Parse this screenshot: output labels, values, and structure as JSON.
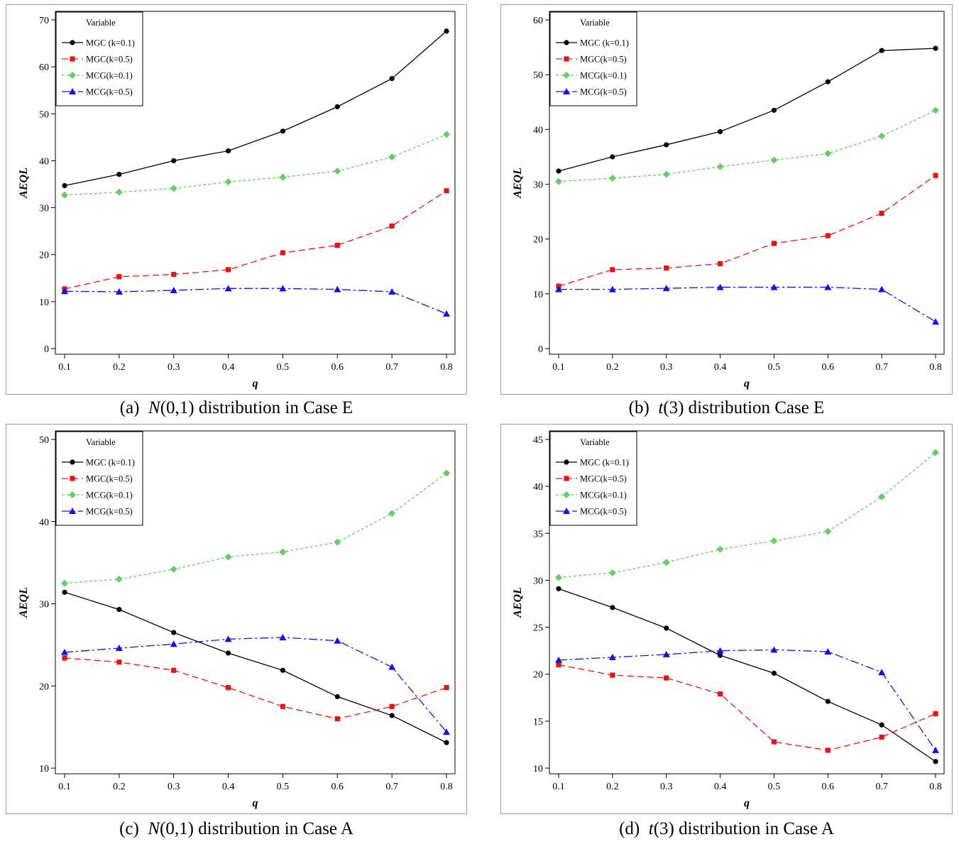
{
  "legend_title": "Variable",
  "series_styles": [
    {
      "color": "#000000",
      "dash": "",
      "marker": "circle"
    },
    {
      "color": "#ee1111",
      "dash": "9,5",
      "marker": "square"
    },
    {
      "color": "#66cc66",
      "dash": "4,3",
      "marker": "diamond"
    },
    {
      "color": "#1111ee",
      "dash": "12,4,3,4",
      "marker": "triangle"
    }
  ],
  "chart_data": [
    {
      "type": "line",
      "caption": {
        "label": "(a)",
        "dist": "N",
        "params": "(0,1)",
        "rest": "distribution in Case E"
      },
      "xlabel": "q",
      "ylabel": "AEQL",
      "x": [
        0.1,
        0.2,
        0.3,
        0.4,
        0.5,
        0.6,
        0.7,
        0.8
      ],
      "ylim": [
        0,
        70
      ],
      "yticks": [
        0,
        10,
        20,
        30,
        40,
        50,
        60,
        70
      ],
      "series": [
        {
          "name": "MGC (k=0.1)",
          "values": [
            34.7,
            37.1,
            40.0,
            42.1,
            46.3,
            51.5,
            57.5,
            67.6
          ]
        },
        {
          "name": "MGC(k=0.5)",
          "values": [
            12.7,
            15.3,
            15.8,
            16.8,
            20.4,
            22.0,
            26.1,
            33.6
          ]
        },
        {
          "name": "MCG(k=0.1)",
          "values": [
            32.7,
            33.3,
            34.1,
            35.5,
            36.5,
            37.8,
            40.8,
            45.6
          ]
        },
        {
          "name": "MCG(k=0.5)",
          "values": [
            12.2,
            12.1,
            12.4,
            12.8,
            12.8,
            12.6,
            12.1,
            7.4
          ]
        }
      ]
    },
    {
      "type": "line",
      "caption": {
        "label": "(b)",
        "dist": "t",
        "params": "(3)",
        "rest": "distribution Case E"
      },
      "xlabel": "q",
      "ylabel": "AEQL",
      "x": [
        0.1,
        0.2,
        0.3,
        0.4,
        0.5,
        0.6,
        0.7,
        0.8
      ],
      "ylim": [
        0,
        60
      ],
      "yticks": [
        0,
        10,
        20,
        30,
        40,
        50,
        60
      ],
      "series": [
        {
          "name": "MGC (k=0.1)",
          "values": [
            32.4,
            35.0,
            37.2,
            39.6,
            43.5,
            48.7,
            54.4,
            54.8
          ]
        },
        {
          "name": "MGC(k=0.5)",
          "values": [
            11.4,
            14.4,
            14.7,
            15.5,
            19.2,
            20.6,
            24.7,
            31.6
          ]
        },
        {
          "name": "MCG(k=0.1)",
          "values": [
            30.5,
            31.1,
            31.8,
            33.2,
            34.4,
            35.6,
            38.8,
            43.5
          ]
        },
        {
          "name": "MCG(k=0.5)",
          "values": [
            10.8,
            10.8,
            11.0,
            11.2,
            11.2,
            11.2,
            10.8,
            4.9
          ]
        }
      ]
    },
    {
      "type": "line",
      "caption": {
        "label": "(c)",
        "dist": "N",
        "params": "(0,1)",
        "rest": "distribution in Case A"
      },
      "xlabel": "q",
      "ylabel": "AEQL",
      "x": [
        0.1,
        0.2,
        0.3,
        0.4,
        0.5,
        0.6,
        0.7,
        0.8
      ],
      "ylim": [
        10,
        50
      ],
      "yticks": [
        10,
        20,
        30,
        40,
        50
      ],
      "series": [
        {
          "name": "MGC (k=0.1)",
          "values": [
            31.4,
            29.3,
            26.5,
            24.0,
            21.9,
            18.7,
            16.4,
            13.1
          ]
        },
        {
          "name": "MGC(k=0.5)",
          "values": [
            23.4,
            22.9,
            21.9,
            19.8,
            17.5,
            16.0,
            17.5,
            19.8
          ]
        },
        {
          "name": "MCG(k=0.1)",
          "values": [
            32.5,
            33.0,
            34.2,
            35.7,
            36.3,
            37.5,
            41.0,
            45.9
          ]
        },
        {
          "name": "MCG(k=0.5)",
          "values": [
            24.1,
            24.6,
            25.1,
            25.7,
            25.9,
            25.5,
            22.3,
            14.4
          ]
        }
      ]
    },
    {
      "type": "line",
      "caption": {
        "label": "(d)",
        "dist": "t",
        "params": "(3)",
        "rest": "distribution in Case A"
      },
      "xlabel": "q",
      "ylabel": "AEQL",
      "x": [
        0.1,
        0.2,
        0.3,
        0.4,
        0.5,
        0.6,
        0.7,
        0.8
      ],
      "ylim": [
        10,
        45
      ],
      "yticks": [
        10,
        15,
        20,
        25,
        30,
        35,
        40,
        45
      ],
      "series": [
        {
          "name": "MGC (k=0.1)",
          "values": [
            29.1,
            27.1,
            24.9,
            22.0,
            20.1,
            17.1,
            14.6,
            10.7
          ]
        },
        {
          "name": "MGC(k=0.5)",
          "values": [
            21.0,
            19.9,
            19.6,
            17.9,
            12.8,
            11.9,
            13.3,
            15.8
          ]
        },
        {
          "name": "MCG(k=0.1)",
          "values": [
            30.3,
            30.8,
            31.9,
            33.3,
            34.2,
            35.2,
            38.9,
            43.6
          ]
        },
        {
          "name": "MCG(k=0.5)",
          "values": [
            21.5,
            21.8,
            22.1,
            22.5,
            22.6,
            22.4,
            20.2,
            11.9
          ]
        }
      ]
    }
  ]
}
